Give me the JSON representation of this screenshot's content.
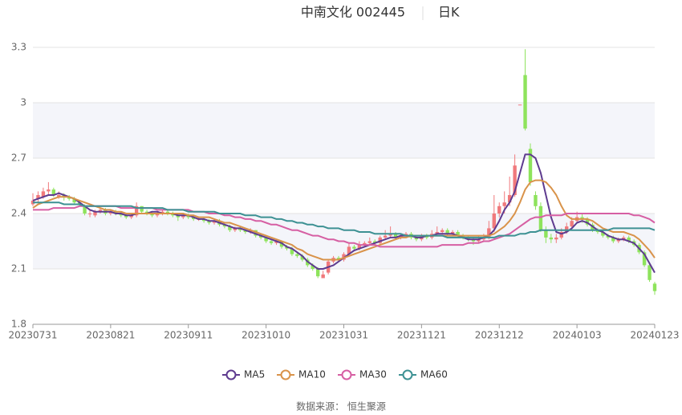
{
  "chart_data": {
    "type": "candlestick",
    "title": "中南文化 002445",
    "subtitle": "日K",
    "source": "数据来源： 恒生聚源",
    "up_color": "#f0797c",
    "down_color": "#8ee35c",
    "ylim": [
      1.8,
      3.3
    ],
    "yticks": [
      1.8,
      2.1,
      2.4,
      2.7,
      3,
      3.3
    ],
    "grid": true,
    "legend": "bottom",
    "categories": [
      "20230731",
      null,
      null,
      null,
      null,
      null,
      null,
      null,
      null,
      null,
      null,
      null,
      null,
      null,
      null,
      "20230821",
      null,
      null,
      null,
      null,
      null,
      null,
      null,
      null,
      null,
      null,
      null,
      null,
      null,
      null,
      "20230911",
      null,
      null,
      null,
      null,
      null,
      null,
      null,
      null,
      null,
      null,
      null,
      null,
      null,
      null,
      "20231010",
      null,
      null,
      null,
      null,
      null,
      null,
      null,
      null,
      null,
      null,
      null,
      null,
      null,
      null,
      "20231031",
      null,
      null,
      null,
      null,
      null,
      null,
      null,
      null,
      null,
      null,
      null,
      null,
      null,
      null,
      "20231121",
      null,
      null,
      null,
      null,
      null,
      null,
      null,
      null,
      null,
      null,
      null,
      null,
      null,
      null,
      "20231212",
      null,
      null,
      null,
      null,
      null,
      null,
      null,
      null,
      null,
      null,
      null,
      null,
      null,
      null,
      "20240103",
      null,
      null,
      null,
      null,
      null,
      null,
      null,
      null,
      null,
      null,
      null,
      null,
      null,
      null,
      "20240123"
    ],
    "candles": [
      [
        2.45,
        2.47,
        2.44,
        2.51
      ],
      [
        2.48,
        2.5,
        2.46,
        2.52
      ],
      [
        2.49,
        2.52,
        2.48,
        2.54
      ],
      [
        2.52,
        2.53,
        2.5,
        2.57
      ],
      [
        2.53,
        2.5,
        2.49,
        2.54
      ],
      [
        2.49,
        2.5,
        2.48,
        2.52
      ],
      [
        2.5,
        2.49,
        2.47,
        2.51
      ],
      [
        2.49,
        2.48,
        2.47,
        2.5
      ],
      [
        2.48,
        2.46,
        2.45,
        2.49
      ],
      [
        2.46,
        2.45,
        2.44,
        2.47
      ],
      [
        2.44,
        2.4,
        2.39,
        2.45
      ],
      [
        2.4,
        2.4,
        2.38,
        2.42
      ],
      [
        2.39,
        2.41,
        2.38,
        2.42
      ],
      [
        2.41,
        2.42,
        2.4,
        2.43
      ],
      [
        2.42,
        2.4,
        2.39,
        2.43
      ],
      [
        2.4,
        2.41,
        2.39,
        2.42
      ],
      [
        2.41,
        2.4,
        2.39,
        2.42
      ],
      [
        2.4,
        2.39,
        2.38,
        2.41
      ],
      [
        2.39,
        2.38,
        2.37,
        2.4
      ],
      [
        2.38,
        2.39,
        2.37,
        2.4
      ],
      [
        2.39,
        2.44,
        2.38,
        2.46
      ],
      [
        2.44,
        2.41,
        2.4,
        2.44
      ],
      [
        2.41,
        2.4,
        2.39,
        2.42
      ],
      [
        2.4,
        2.39,
        2.38,
        2.41
      ],
      [
        2.39,
        2.4,
        2.38,
        2.41
      ],
      [
        2.4,
        2.41,
        2.39,
        2.42
      ],
      [
        2.41,
        2.4,
        2.39,
        2.42
      ],
      [
        2.4,
        2.39,
        2.38,
        2.41
      ],
      [
        2.39,
        2.38,
        2.36,
        2.4
      ],
      [
        2.38,
        2.39,
        2.37,
        2.4
      ],
      [
        2.39,
        2.38,
        2.37,
        2.4
      ],
      [
        2.38,
        2.37,
        2.36,
        2.39
      ],
      [
        2.37,
        2.37,
        2.36,
        2.38
      ],
      [
        2.37,
        2.36,
        2.35,
        2.38
      ],
      [
        2.36,
        2.35,
        2.34,
        2.37
      ],
      [
        2.35,
        2.36,
        2.34,
        2.37
      ],
      [
        2.36,
        2.34,
        2.33,
        2.37
      ],
      [
        2.34,
        2.33,
        2.32,
        2.35
      ],
      [
        2.33,
        2.31,
        2.3,
        2.34
      ],
      [
        2.31,
        2.32,
        2.3,
        2.33
      ],
      [
        2.32,
        2.31,
        2.3,
        2.33
      ],
      [
        2.31,
        2.3,
        2.29,
        2.32
      ],
      [
        2.3,
        2.31,
        2.29,
        2.32
      ],
      [
        2.31,
        2.28,
        2.27,
        2.31
      ],
      [
        2.28,
        2.27,
        2.26,
        2.29
      ],
      [
        2.27,
        2.25,
        2.24,
        2.28
      ],
      [
        2.25,
        2.24,
        2.23,
        2.26
      ],
      [
        2.24,
        2.25,
        2.23,
        2.26
      ],
      [
        2.25,
        2.22,
        2.21,
        2.25
      ],
      [
        2.22,
        2.21,
        2.2,
        2.23
      ],
      [
        2.21,
        2.18,
        2.17,
        2.22
      ],
      [
        2.18,
        2.17,
        2.16,
        2.19
      ],
      [
        2.17,
        2.15,
        2.14,
        2.18
      ],
      [
        2.15,
        2.12,
        2.11,
        2.16
      ],
      [
        2.12,
        2.1,
        2.09,
        2.13
      ],
      [
        2.1,
        2.06,
        2.05,
        2.11
      ],
      [
        2.05,
        2.07,
        2.05,
        2.09
      ],
      [
        2.08,
        2.14,
        2.07,
        2.15
      ],
      [
        2.14,
        2.16,
        2.13,
        2.17
      ],
      [
        2.16,
        2.15,
        2.14,
        2.17
      ],
      [
        2.15,
        2.18,
        2.14,
        2.19
      ],
      [
        2.18,
        2.22,
        2.17,
        2.24
      ],
      [
        2.22,
        2.21,
        2.2,
        2.23
      ],
      [
        2.21,
        2.23,
        2.2,
        2.25
      ],
      [
        2.23,
        2.24,
        2.22,
        2.25
      ],
      [
        2.24,
        2.25,
        2.23,
        2.27
      ],
      [
        2.25,
        2.24,
        2.23,
        2.26
      ],
      [
        2.24,
        2.27,
        2.23,
        2.28
      ],
      [
        2.27,
        2.28,
        2.26,
        2.31
      ],
      [
        2.28,
        2.29,
        2.27,
        2.33
      ],
      [
        2.29,
        2.27,
        2.26,
        2.3
      ],
      [
        2.27,
        2.28,
        2.26,
        2.29
      ],
      [
        2.28,
        2.29,
        2.27,
        2.3
      ],
      [
        2.29,
        2.27,
        2.26,
        2.3
      ],
      [
        2.27,
        2.26,
        2.25,
        2.28
      ],
      [
        2.26,
        2.28,
        2.25,
        2.29
      ],
      [
        2.28,
        2.27,
        2.26,
        2.29
      ],
      [
        2.27,
        2.29,
        2.26,
        2.31
      ],
      [
        2.29,
        2.3,
        2.28,
        2.33
      ],
      [
        2.3,
        2.31,
        2.29,
        2.32
      ],
      [
        2.31,
        2.29,
        2.28,
        2.32
      ],
      [
        2.29,
        2.3,
        2.28,
        2.31
      ],
      [
        2.3,
        2.28,
        2.27,
        2.31
      ],
      [
        2.28,
        2.27,
        2.26,
        2.29
      ],
      [
        2.27,
        2.26,
        2.25,
        2.28
      ],
      [
        2.26,
        2.25,
        2.23,
        2.27
      ],
      [
        2.25,
        2.26,
        2.24,
        2.28
      ],
      [
        2.26,
        2.27,
        2.25,
        2.29
      ],
      [
        2.27,
        2.32,
        2.26,
        2.36
      ],
      [
        2.32,
        2.4,
        2.3,
        2.5
      ],
      [
        2.4,
        2.44,
        2.38,
        2.46
      ],
      [
        2.44,
        2.46,
        2.4,
        2.52
      ],
      [
        2.46,
        2.5,
        2.44,
        2.6
      ],
      [
        2.5,
        2.66,
        2.49,
        2.72
      ],
      [
        2.99,
        2.99,
        2.99,
        2.99
      ],
      [
        3.15,
        2.86,
        2.85,
        3.29
      ],
      [
        2.75,
        2.57,
        2.55,
        2.78
      ],
      [
        2.5,
        2.44,
        2.42,
        2.52
      ],
      [
        2.44,
        2.31,
        2.3,
        2.46
      ],
      [
        2.31,
        2.27,
        2.24,
        2.33
      ],
      [
        2.27,
        2.26,
        2.24,
        2.29
      ],
      [
        2.26,
        2.27,
        2.24,
        2.29
      ],
      [
        2.27,
        2.3,
        2.26,
        2.32
      ],
      [
        2.3,
        2.33,
        2.29,
        2.35
      ],
      [
        2.33,
        2.36,
        2.32,
        2.38
      ],
      [
        2.36,
        2.38,
        2.35,
        2.41
      ],
      [
        2.38,
        2.37,
        2.35,
        2.4
      ],
      [
        2.37,
        2.34,
        2.33,
        2.38
      ],
      [
        2.34,
        2.31,
        2.3,
        2.35
      ],
      [
        2.31,
        2.3,
        2.29,
        2.32
      ],
      [
        2.3,
        2.28,
        2.27,
        2.31
      ],
      [
        2.28,
        2.27,
        2.26,
        2.29
      ],
      [
        2.27,
        2.25,
        2.24,
        2.28
      ],
      [
        2.25,
        2.26,
        2.24,
        2.27
      ],
      [
        2.26,
        2.27,
        2.25,
        2.28
      ],
      [
        2.27,
        2.25,
        2.24,
        2.28
      ],
      [
        2.25,
        2.23,
        2.22,
        2.26
      ],
      [
        2.23,
        2.19,
        2.18,
        2.24
      ],
      [
        2.19,
        2.12,
        2.11,
        2.2
      ],
      [
        2.12,
        2.04,
        2.03,
        2.13
      ],
      [
        2.02,
        1.98,
        1.96,
        2.03
      ]
    ],
    "series": [
      {
        "name": "MA5",
        "color": "#5e3b8f",
        "values": [
          2.47,
          2.48,
          2.49,
          2.5,
          2.5,
          2.51,
          2.5,
          2.49,
          2.48,
          2.46,
          2.44,
          2.42,
          2.41,
          2.41,
          2.41,
          2.41,
          2.4,
          2.4,
          2.39,
          2.39,
          2.4,
          2.4,
          2.4,
          2.41,
          2.41,
          2.4,
          2.4,
          2.4,
          2.39,
          2.39,
          2.39,
          2.38,
          2.37,
          2.37,
          2.36,
          2.36,
          2.35,
          2.34,
          2.33,
          2.32,
          2.32,
          2.31,
          2.3,
          2.29,
          2.28,
          2.27,
          2.26,
          2.25,
          2.24,
          2.22,
          2.21,
          2.19,
          2.17,
          2.14,
          2.12,
          2.1,
          2.1,
          2.11,
          2.12,
          2.14,
          2.16,
          2.18,
          2.2,
          2.21,
          2.22,
          2.23,
          2.24,
          2.25,
          2.26,
          2.27,
          2.27,
          2.28,
          2.28,
          2.28,
          2.27,
          2.27,
          2.28,
          2.28,
          2.29,
          2.29,
          2.29,
          2.29,
          2.28,
          2.27,
          2.26,
          2.26,
          2.26,
          2.27,
          2.28,
          2.31,
          2.36,
          2.42,
          2.46,
          2.52,
          2.62,
          2.72,
          2.72,
          2.7,
          2.62,
          2.5,
          2.38,
          2.3,
          2.29,
          2.3,
          2.32,
          2.35,
          2.36,
          2.35,
          2.33,
          2.31,
          2.3,
          2.28,
          2.27,
          2.26,
          2.26,
          2.25,
          2.24,
          2.21,
          2.18,
          2.13,
          2.08
        ]
      },
      {
        "name": "MA10",
        "color": "#d9934a",
        "values": [
          2.43,
          2.45,
          2.46,
          2.47,
          2.48,
          2.49,
          2.49,
          2.49,
          2.48,
          2.47,
          2.46,
          2.45,
          2.44,
          2.43,
          2.42,
          2.42,
          2.41,
          2.41,
          2.4,
          2.4,
          2.4,
          2.4,
          2.4,
          2.4,
          2.4,
          2.4,
          2.4,
          2.4,
          2.4,
          2.4,
          2.39,
          2.39,
          2.38,
          2.38,
          2.38,
          2.37,
          2.36,
          2.35,
          2.35,
          2.34,
          2.33,
          2.32,
          2.31,
          2.3,
          2.29,
          2.28,
          2.27,
          2.26,
          2.25,
          2.24,
          2.23,
          2.21,
          2.2,
          2.18,
          2.17,
          2.16,
          2.15,
          2.15,
          2.15,
          2.15,
          2.16,
          2.17,
          2.18,
          2.19,
          2.2,
          2.21,
          2.22,
          2.23,
          2.24,
          2.25,
          2.26,
          2.27,
          2.27,
          2.28,
          2.28,
          2.28,
          2.28,
          2.28,
          2.28,
          2.28,
          2.28,
          2.28,
          2.28,
          2.28,
          2.28,
          2.28,
          2.28,
          2.28,
          2.28,
          2.29,
          2.31,
          2.33,
          2.36,
          2.4,
          2.46,
          2.53,
          2.57,
          2.58,
          2.58,
          2.57,
          2.54,
          2.5,
          2.44,
          2.39,
          2.37,
          2.37,
          2.37,
          2.37,
          2.36,
          2.34,
          2.32,
          2.31,
          2.3,
          2.3,
          2.3,
          2.29,
          2.28,
          2.26,
          2.23,
          2.2,
          2.16
        ]
      },
      {
        "name": "MA30",
        "color": "#d65fa3",
        "values": [
          2.42,
          2.42,
          2.42,
          2.42,
          2.43,
          2.43,
          2.43,
          2.43,
          2.43,
          2.44,
          2.44,
          2.44,
          2.44,
          2.44,
          2.44,
          2.44,
          2.44,
          2.43,
          2.43,
          2.43,
          2.43,
          2.43,
          2.43,
          2.43,
          2.42,
          2.42,
          2.42,
          2.42,
          2.42,
          2.42,
          2.42,
          2.41,
          2.41,
          2.41,
          2.4,
          2.4,
          2.4,
          2.39,
          2.39,
          2.38,
          2.38,
          2.37,
          2.37,
          2.36,
          2.36,
          2.35,
          2.34,
          2.34,
          2.33,
          2.32,
          2.31,
          2.31,
          2.3,
          2.29,
          2.28,
          2.28,
          2.27,
          2.26,
          2.26,
          2.25,
          2.25,
          2.24,
          2.24,
          2.23,
          2.23,
          2.23,
          2.23,
          2.22,
          2.22,
          2.22,
          2.22,
          2.22,
          2.22,
          2.22,
          2.22,
          2.22,
          2.22,
          2.22,
          2.22,
          2.23,
          2.23,
          2.23,
          2.23,
          2.23,
          2.24,
          2.24,
          2.24,
          2.25,
          2.25,
          2.26,
          2.27,
          2.28,
          2.29,
          2.31,
          2.33,
          2.35,
          2.37,
          2.38,
          2.38,
          2.39,
          2.39,
          2.39,
          2.39,
          2.4,
          2.4,
          2.4,
          2.4,
          2.4,
          2.4,
          2.4,
          2.4,
          2.4,
          2.4,
          2.4,
          2.4,
          2.4,
          2.39,
          2.39,
          2.38,
          2.37,
          2.35
        ]
      },
      {
        "name": "MA60",
        "color": "#3d9193",
        "values": [
          2.46,
          2.46,
          2.46,
          2.46,
          2.46,
          2.46,
          2.45,
          2.45,
          2.45,
          2.45,
          2.44,
          2.44,
          2.44,
          2.44,
          2.44,
          2.44,
          2.44,
          2.44,
          2.44,
          2.44,
          2.43,
          2.43,
          2.43,
          2.43,
          2.43,
          2.43,
          2.42,
          2.42,
          2.42,
          2.42,
          2.41,
          2.41,
          2.41,
          2.41,
          2.41,
          2.41,
          2.4,
          2.4,
          2.4,
          2.4,
          2.4,
          2.39,
          2.39,
          2.39,
          2.38,
          2.38,
          2.38,
          2.37,
          2.37,
          2.36,
          2.36,
          2.35,
          2.35,
          2.34,
          2.34,
          2.33,
          2.33,
          2.32,
          2.32,
          2.32,
          2.31,
          2.31,
          2.31,
          2.3,
          2.3,
          2.3,
          2.29,
          2.29,
          2.29,
          2.29,
          2.29,
          2.29,
          2.28,
          2.28,
          2.28,
          2.28,
          2.28,
          2.28,
          2.28,
          2.28,
          2.27,
          2.27,
          2.27,
          2.27,
          2.27,
          2.27,
          2.27,
          2.27,
          2.27,
          2.27,
          2.28,
          2.28,
          2.28,
          2.28,
          2.29,
          2.29,
          2.3,
          2.3,
          2.31,
          2.31,
          2.31,
          2.31,
          2.31,
          2.31,
          2.31,
          2.31,
          2.31,
          2.31,
          2.31,
          2.31,
          2.31,
          2.31,
          2.32,
          2.32,
          2.32,
          2.32,
          2.32,
          2.32,
          2.32,
          2.32,
          2.31
        ]
      }
    ]
  }
}
